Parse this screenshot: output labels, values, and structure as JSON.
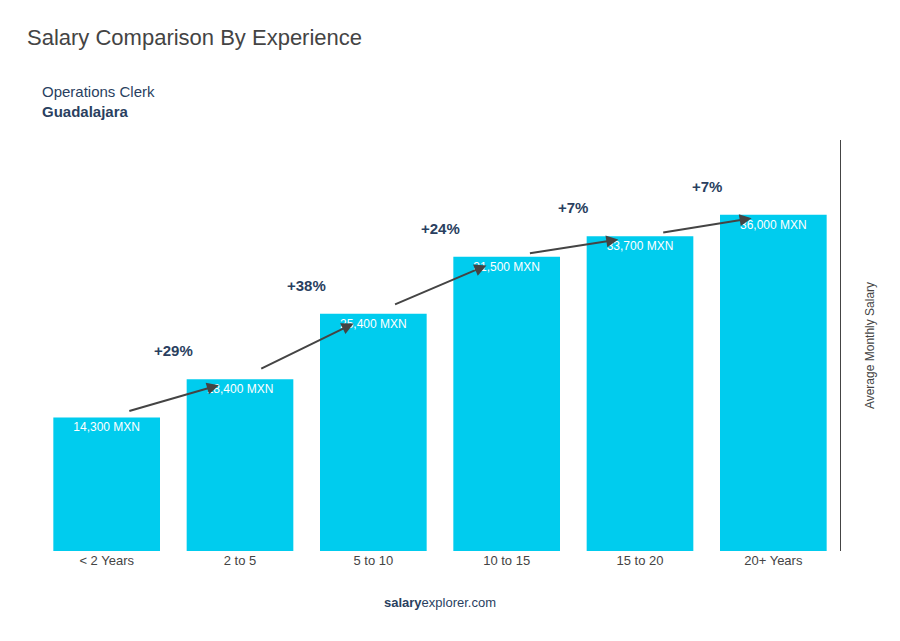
{
  "chart_data": {
    "type": "bar",
    "title": "Salary Comparison By Experience",
    "subtitle": [
      "Operations Clerk",
      "Guadalajara"
    ],
    "ylabel": "Average Monthly Salary",
    "categories": [
      "< 2 Years",
      "2 to 5",
      "5 to 10",
      "10 to 15",
      "15 to 20",
      "20+ Years"
    ],
    "values": [
      14300,
      18400,
      25400,
      31500,
      33700,
      36000
    ],
    "value_labels": [
      "14,300 MXN",
      "18,400 MXN",
      "25,400 MXN",
      "31,500 MXN",
      "33,700 MXN",
      "36,000 MXN"
    ],
    "data_labels": true,
    "annotations": [
      "+29%",
      "+38%",
      "+24%",
      "+7%",
      "+7%"
    ],
    "footer": [
      "salary",
      "explorer.com"
    ],
    "color": "#00ccee",
    "ylim": [
      0,
      44000
    ],
    "tick_labels": "x",
    "grid": false
  }
}
